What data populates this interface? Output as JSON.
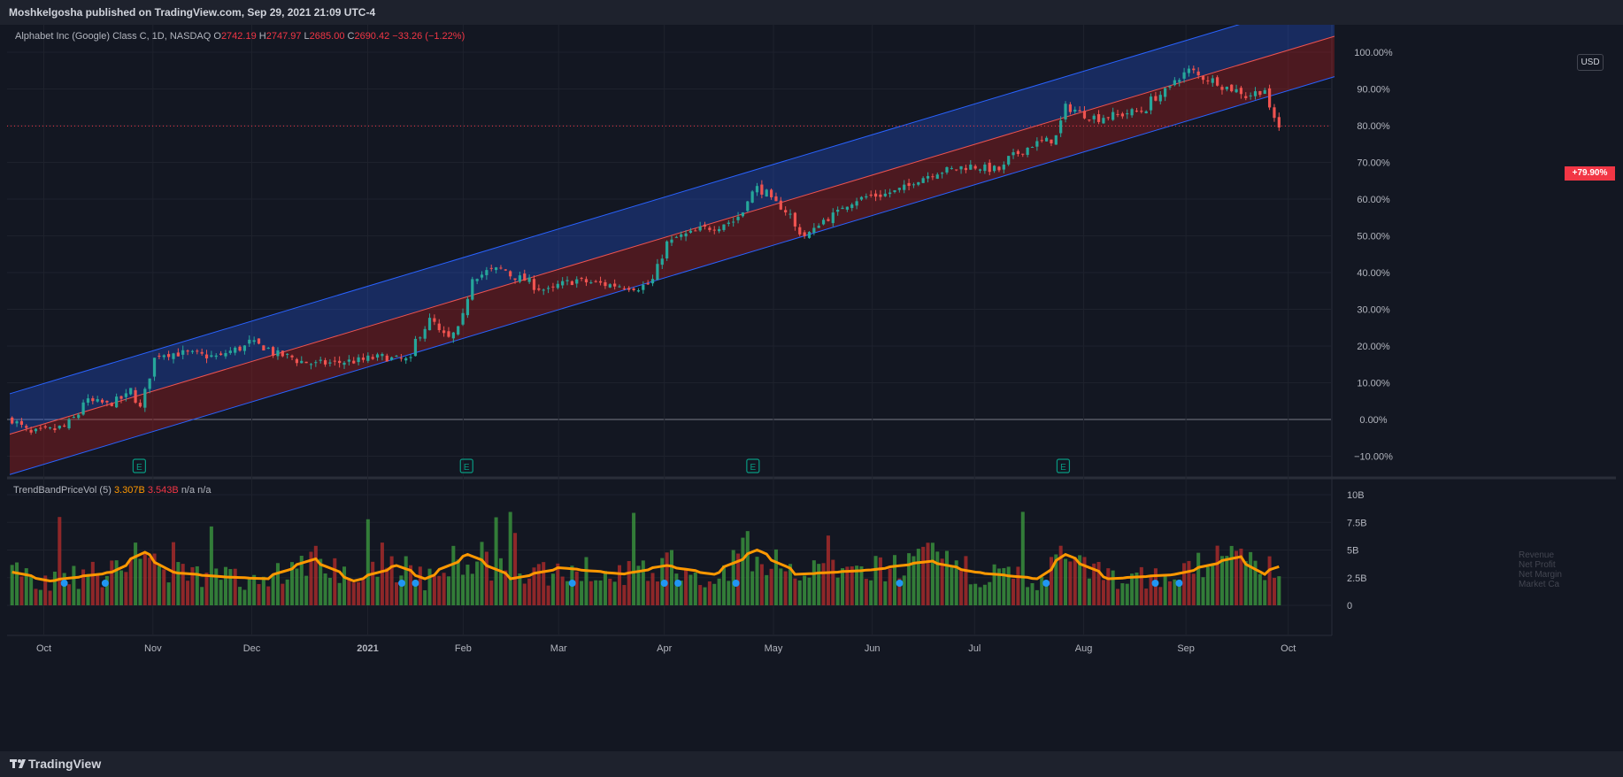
{
  "header": {
    "published": "Moshkelgosha published on TradingView.com, Sep 29, 2021 21:09 UTC-4"
  },
  "footer": {
    "brand": "TradingView"
  },
  "legend": {
    "symbol": "Alphabet Inc (Google) Class C, 1D, NASDAQ",
    "o_label": "O",
    "o_value": "2742.19",
    "h_label": "H",
    "h_value": "2747.97",
    "l_label": "L",
    "l_value": "2685.00",
    "c_label": "C",
    "c_value": "2690.42",
    "change": "−33.26 (−1.22%)"
  },
  "currency_button": "USD",
  "last_value_badge": "+79.90%",
  "indicator": {
    "name": "TrendBandPriceVol (5)",
    "v1": "3.307B",
    "v2": "3.543B",
    "v3": "n/a",
    "v4": "n/a",
    "fundamental_labels": [
      "Revenue",
      "Net Profit",
      "Net Margin",
      "Market Ca"
    ]
  },
  "colors": {
    "up": "#26a69a",
    "down": "#ef5350",
    "band_upper": "#2962ff",
    "band_lower": "#b71c1c",
    "vol_up": "#388e3c",
    "vol_down": "#a52a2a",
    "ma": "#ff9800",
    "dot": "#2196f3",
    "earnings": "#089981"
  },
  "chart_data": [
    {
      "type": "candlestick",
      "title": "Alphabet Inc (Google) Class C, 1D, NASDAQ",
      "y_scale": "percent",
      "ylim": [
        -15,
        105
      ],
      "y_ticks": [
        "100.00%",
        "90.00%",
        "80.00%",
        "70.00%",
        "60.00%",
        "50.00%",
        "40.00%",
        "30.00%",
        "20.00%",
        "10.00%",
        "0.00%",
        "−10.00%"
      ],
      "x_ticks": [
        "Oct",
        "Nov",
        "Dec",
        "2021",
        "Feb",
        "Mar",
        "Apr",
        "May",
        "Jun",
        "Jul",
        "Aug",
        "Sep",
        "Oct"
      ],
      "last_value_pct": 79.9,
      "channel": {
        "start": {
          "date": "2020-09-21",
          "lower": -15,
          "middle": -4,
          "upper": 7
        },
        "end": {
          "date": "2021-09-29",
          "lower": 89,
          "middle": 100,
          "upper": 111
        }
      },
      "earnings_markers": [
        "2020-10-29",
        "2021-02-02",
        "2021-04-27",
        "2021-07-27"
      ],
      "close_path_pct": [
        [
          "2020-09-21",
          0
        ],
        [
          "2020-09-25",
          -4
        ],
        [
          "2020-10-06",
          -2
        ],
        [
          "2020-10-12",
          5
        ],
        [
          "2020-10-19",
          4
        ],
        [
          "2020-10-26",
          8
        ],
        [
          "2020-10-28",
          3
        ],
        [
          "2020-10-30",
          12
        ],
        [
          "2020-11-03",
          18
        ],
        [
          "2020-11-10",
          18
        ],
        [
          "2020-11-20",
          17
        ],
        [
          "2020-11-30",
          21
        ],
        [
          "2020-12-07",
          18
        ],
        [
          "2020-12-18",
          15
        ],
        [
          "2020-12-31",
          16
        ],
        [
          "2021-01-07",
          17
        ],
        [
          "2021-01-15",
          16
        ],
        [
          "2021-01-21",
          27
        ],
        [
          "2021-01-27",
          22
        ],
        [
          "2021-02-01",
          28
        ],
        [
          "2021-02-03",
          39
        ],
        [
          "2021-02-11",
          41
        ],
        [
          "2021-02-25",
          35
        ],
        [
          "2021-03-05",
          38
        ],
        [
          "2021-03-12",
          37
        ],
        [
          "2021-03-24",
          36
        ],
        [
          "2021-03-29",
          38
        ],
        [
          "2021-04-01",
          48
        ],
        [
          "2021-04-09",
          51
        ],
        [
          "2021-04-21",
          54
        ],
        [
          "2021-04-28",
          63
        ],
        [
          "2021-05-05",
          58
        ],
        [
          "2021-05-12",
          50
        ],
        [
          "2021-05-19",
          55
        ],
        [
          "2021-05-27",
          60
        ],
        [
          "2021-06-08",
          62
        ],
        [
          "2021-06-18",
          67
        ],
        [
          "2021-06-30",
          69
        ],
        [
          "2021-07-08",
          68
        ],
        [
          "2021-07-16",
          74
        ],
        [
          "2021-07-26",
          77
        ],
        [
          "2021-07-28",
          85
        ],
        [
          "2021-08-06",
          82
        ],
        [
          "2021-08-19",
          84
        ],
        [
          "2021-08-27",
          90
        ],
        [
          "2021-09-02",
          95
        ],
        [
          "2021-09-10",
          92
        ],
        [
          "2021-09-20",
          88
        ],
        [
          "2021-09-24",
          90
        ],
        [
          "2021-09-29",
          79.9
        ]
      ]
    },
    {
      "type": "bar",
      "title": "TrendBandPriceVol (5)",
      "y_ticks": [
        "10B",
        "7.5B",
        "5B",
        "2.5B",
        "0"
      ],
      "ylim": [
        0,
        10
      ],
      "unit": "B",
      "series": [
        {
          "name": "3.307B",
          "values_from": "volume_bars"
        },
        {
          "name": "3.543B",
          "values_from": "moving_average"
        }
      ],
      "moving_average_path": [
        [
          "2020-09-21",
          3.0
        ],
        [
          "2020-10-01",
          2.2
        ],
        [
          "2020-10-20",
          3.0
        ],
        [
          "2020-10-29",
          4.8
        ],
        [
          "2020-11-06",
          3.0
        ],
        [
          "2020-11-20",
          2.6
        ],
        [
          "2020-12-04",
          2.4
        ],
        [
          "2020-12-18",
          4.2
        ],
        [
          "2020-12-30",
          2.2
        ],
        [
          "2021-01-12",
          3.6
        ],
        [
          "2021-01-20",
          2.4
        ],
        [
          "2021-02-02",
          4.6
        ],
        [
          "2021-02-15",
          2.4
        ],
        [
          "2021-03-01",
          3.4
        ],
        [
          "2021-03-20",
          2.8
        ],
        [
          "2021-04-01",
          3.6
        ],
        [
          "2021-04-15",
          2.8
        ],
        [
          "2021-04-28",
          5.0
        ],
        [
          "2021-05-10",
          2.8
        ],
        [
          "2021-06-01",
          3.2
        ],
        [
          "2021-06-18",
          4.0
        ],
        [
          "2021-07-01",
          3.0
        ],
        [
          "2021-07-20",
          2.4
        ],
        [
          "2021-07-28",
          4.6
        ],
        [
          "2021-08-10",
          2.4
        ],
        [
          "2021-08-30",
          2.8
        ],
        [
          "2021-09-17",
          4.4
        ],
        [
          "2021-09-24",
          2.8
        ],
        [
          "2021-09-29",
          3.5
        ]
      ],
      "marker_dates": [
        "2020-10-07",
        "2020-10-19",
        "2021-01-14",
        "2021-01-18",
        "2021-03-05",
        "2021-04-01",
        "2021-04-05",
        "2021-04-22",
        "2021-06-09",
        "2021-07-22",
        "2021-08-23",
        "2021-08-30"
      ]
    }
  ]
}
